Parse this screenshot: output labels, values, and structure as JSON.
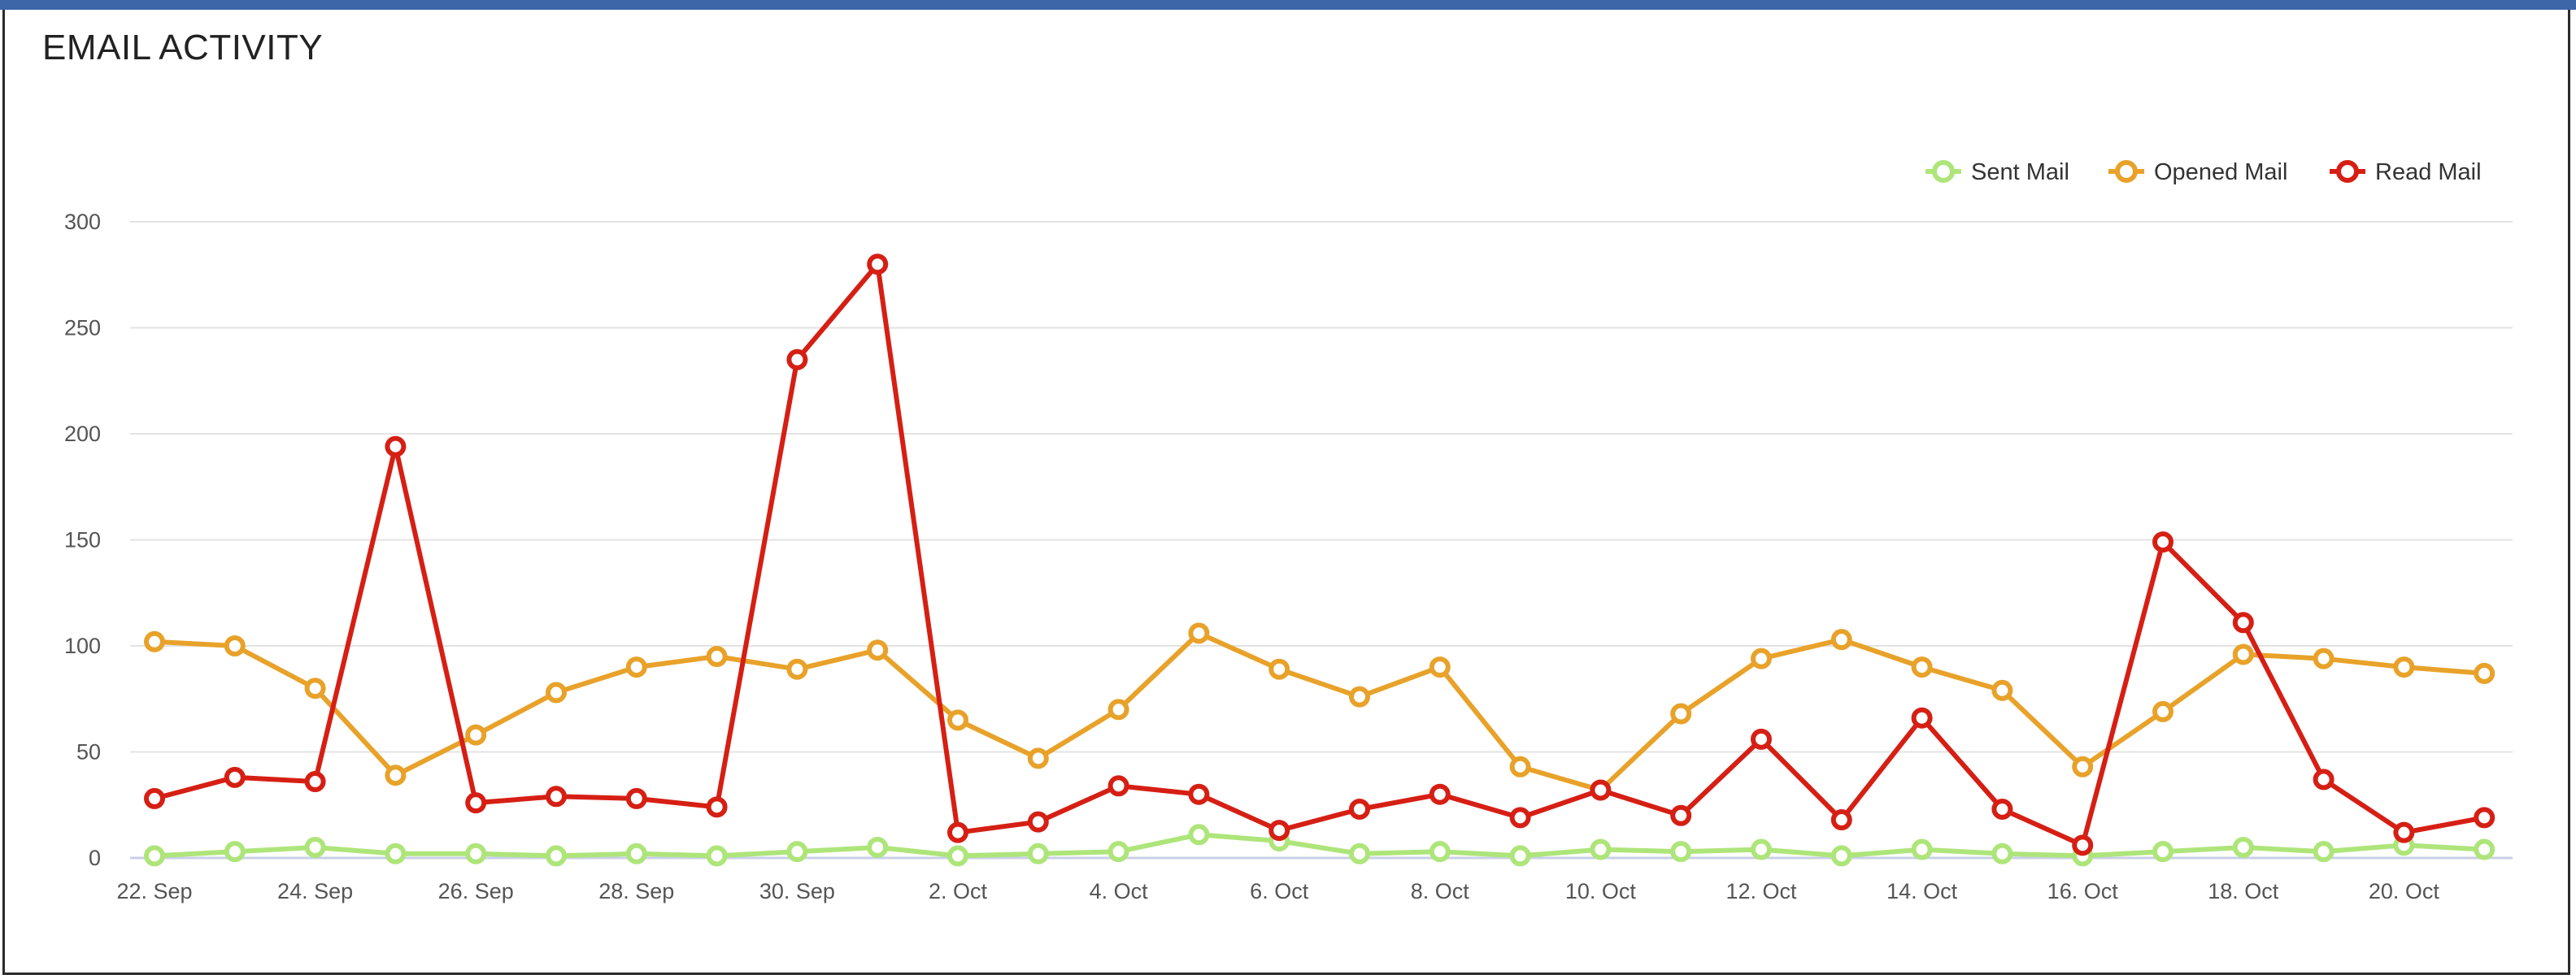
{
  "header": {
    "title": "EMAIL ACTIVITY"
  },
  "chart_data": {
    "type": "line",
    "title": "EMAIL ACTIVITY",
    "xlabel": "",
    "ylabel": "",
    "x": [
      "22. Sep",
      "23. Sep",
      "24. Sep",
      "25. Sep",
      "26. Sep",
      "27. Sep",
      "28. Sep",
      "29. Sep",
      "30. Sep",
      "1. Oct",
      "2. Oct",
      "3. Oct",
      "4. Oct",
      "5. Oct",
      "6. Oct",
      "7. Oct",
      "8. Oct",
      "9. Oct",
      "10. Oct",
      "11. Oct",
      "12. Oct",
      "13. Oct",
      "14. Oct",
      "15. Oct",
      "16. Oct",
      "17. Oct",
      "18. Oct",
      "19. Oct",
      "20. Oct",
      "21. Oct"
    ],
    "x_tick_labels": [
      "22. Sep",
      "24. Sep",
      "26. Sep",
      "28. Sep",
      "30. Sep",
      "2. Oct",
      "4. Oct",
      "6. Oct",
      "8. Oct",
      "10. Oct",
      "12. Oct",
      "14. Oct",
      "16. Oct",
      "18. Oct",
      "20. Oct"
    ],
    "y_ticks": [
      0,
      50,
      100,
      150,
      200,
      250,
      300
    ],
    "ylim": [
      0,
      300
    ],
    "grid": true,
    "legend_position": "top-right",
    "series": [
      {
        "name": "Sent Mail",
        "color": "#aee57a",
        "values": [
          1,
          3,
          5,
          2,
          2,
          1,
          2,
          1,
          3,
          5,
          1,
          2,
          3,
          11,
          8,
          2,
          3,
          1,
          4,
          3,
          4,
          1,
          4,
          2,
          1,
          3,
          5,
          3,
          6,
          4
        ]
      },
      {
        "name": "Opened Mail",
        "color": "#e8a22a",
        "values": [
          102,
          100,
          80,
          39,
          58,
          78,
          90,
          95,
          89,
          98,
          65,
          47,
          70,
          106,
          89,
          76,
          90,
          43,
          32,
          68,
          94,
          103,
          90,
          79,
          43,
          69,
          96,
          94,
          90,
          87
        ]
      },
      {
        "name": "Read Mail",
        "color": "#d61f14",
        "values": [
          28,
          38,
          36,
          194,
          26,
          29,
          28,
          24,
          235,
          280,
          12,
          17,
          34,
          30,
          13,
          23,
          30,
          19,
          32,
          20,
          56,
          18,
          66,
          23,
          6,
          149,
          111,
          37,
          12,
          19
        ]
      }
    ]
  }
}
